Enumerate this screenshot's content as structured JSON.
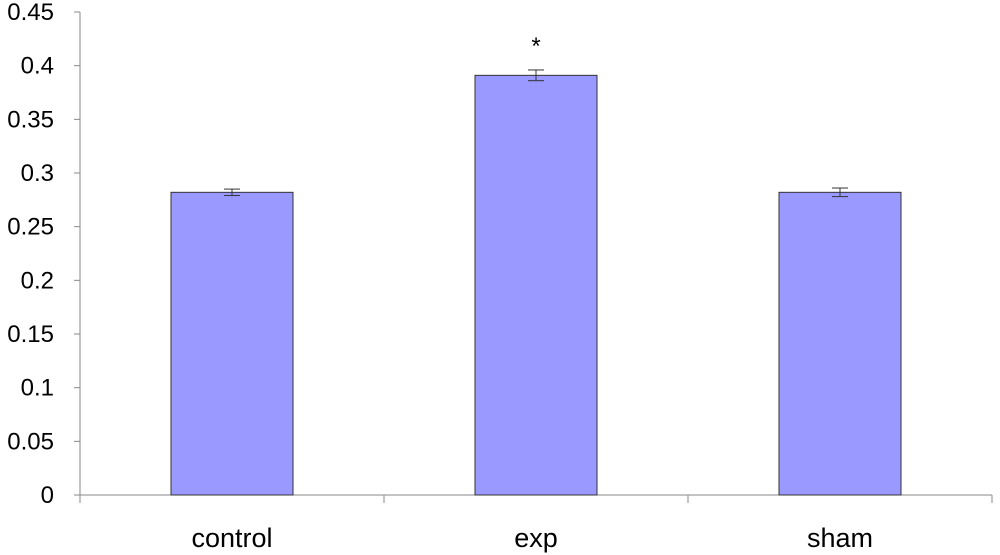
{
  "chart_data": {
    "type": "bar",
    "categories": [
      "control",
      "exp",
      "sham"
    ],
    "values": [
      0.282,
      0.391,
      0.282
    ],
    "errors": [
      0.003,
      0.005,
      0.004
    ],
    "annotations": [
      {
        "category": "exp",
        "text": "*"
      }
    ],
    "ylim": [
      0,
      0.45
    ],
    "yticks": [
      "0",
      "0.05",
      "0.1",
      "0.15",
      "0.2",
      "0.25",
      "0.3",
      "0.35",
      "0.4",
      "0.45"
    ],
    "grid": false,
    "bar_color": "#9999ff",
    "bar_edge_color": "#333333",
    "title": "",
    "xlabel": "",
    "ylabel": ""
  }
}
